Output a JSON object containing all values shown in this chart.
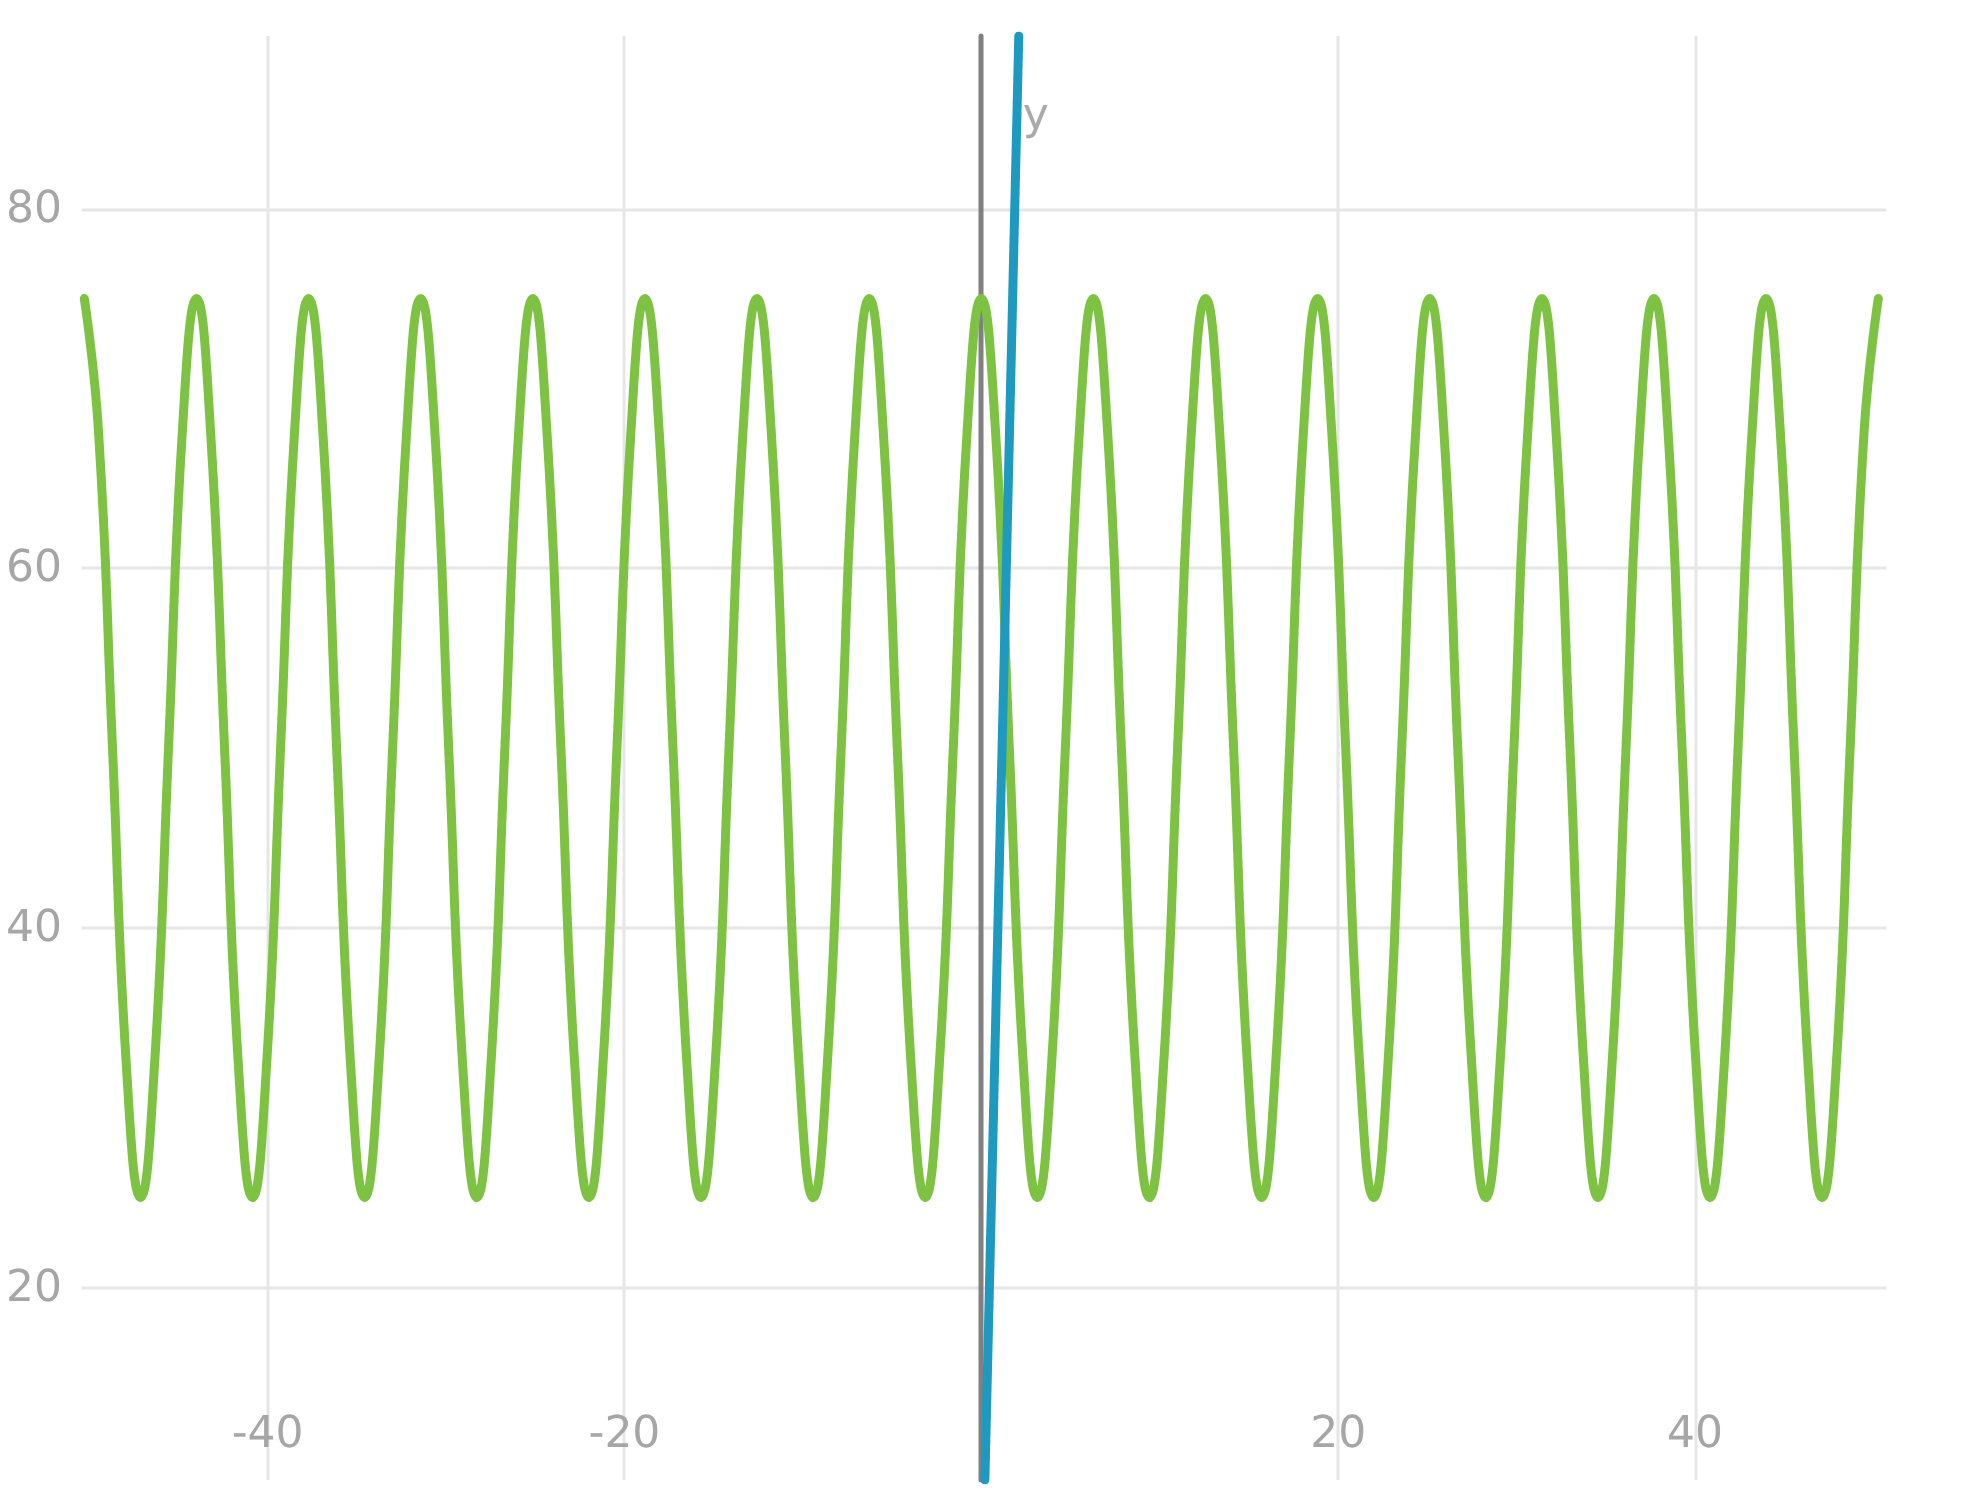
{
  "chart_data": {
    "type": "line",
    "xlim": [
      -50.4,
      50.7
    ],
    "ylim": [
      9.3,
      89.6
    ],
    "xticks": [
      -40,
      -20,
      20,
      40
    ],
    "yticks": [
      20,
      40,
      60,
      80
    ],
    "grid": true,
    "marker": "none",
    "line_style": "solid",
    "series": [
      {
        "color": "#7dc242",
        "x": [
          -50.27,
          -49.48,
          -48.69,
          -47.91,
          -47.12,
          -46.34,
          -45.55,
          -44.77,
          -43.98,
          -43.2,
          -42.41,
          -41.63,
          -40.84,
          -40.06,
          -39.27,
          -38.48,
          -37.7,
          -36.91,
          -36.13,
          -35.34,
          -34.56,
          -33.77,
          -32.99,
          -32.2,
          -31.42,
          -30.63,
          -29.85,
          -29.06,
          -28.27,
          -27.49,
          -26.7,
          -25.92,
          -25.13,
          -24.35,
          -23.56,
          -22.78,
          -21.99,
          -21.21,
          -20.42,
          -19.63,
          -18.85,
          -18.06,
          -17.28,
          -16.49,
          -15.71,
          -14.92,
          -14.14,
          -13.35,
          -12.57,
          -11.78,
          -11,
          -10.21,
          -9.42,
          -8.64,
          -7.85,
          -7.07,
          -6.28,
          -5.5,
          -4.71,
          -3.93,
          -3.14,
          -2.36,
          -1.57,
          -0.79,
          0,
          0.79,
          1.57,
          2.36,
          3.14,
          3.93,
          4.71,
          5.5,
          6.28,
          7.07,
          7.85,
          8.64,
          9.42,
          10.21,
          11,
          11.78,
          12.57,
          13.35,
          14.14,
          14.92,
          15.71,
          16.49,
          17.28,
          18.06,
          18.85,
          19.63,
          20.42,
          21.21,
          21.99,
          22.78,
          23.56,
          24.35,
          25.13,
          25.92,
          26.7,
          27.49,
          28.27,
          29.06,
          29.85,
          30.63,
          31.42,
          32.2,
          32.99,
          33.77,
          34.56,
          35.34,
          36.13,
          36.91,
          37.7,
          38.48,
          39.27,
          40.06,
          40.84,
          41.63,
          42.41,
          43.2,
          43.98,
          44.77,
          45.55,
          46.34,
          47.12,
          47.91,
          48.69,
          49.48,
          50.27
        ],
        "values": [
          75,
          67.7,
          50,
          32.3,
          25,
          32.3,
          50,
          67.7,
          75,
          67.7,
          50,
          32.3,
          25,
          32.3,
          50,
          67.7,
          75,
          67.7,
          50,
          32.3,
          25,
          32.3,
          50,
          67.7,
          75,
          67.7,
          50,
          32.3,
          25,
          32.3,
          50,
          67.7,
          75,
          67.7,
          50,
          32.3,
          25,
          32.3,
          50,
          67.7,
          75,
          67.7,
          50,
          32.3,
          25,
          32.3,
          50,
          67.7,
          75,
          67.7,
          50,
          32.3,
          25,
          32.3,
          50,
          67.7,
          75,
          67.7,
          50,
          32.3,
          25,
          32.3,
          50,
          67.7,
          75,
          67.7,
          50,
          32.3,
          25,
          32.3,
          50,
          67.7,
          75,
          67.7,
          50,
          32.3,
          25,
          32.3,
          50,
          67.7,
          75,
          67.7,
          50,
          32.3,
          25,
          32.3,
          50,
          67.7,
          75,
          67.7,
          50,
          32.3,
          25,
          32.3,
          50,
          67.7,
          75,
          67.7,
          50,
          32.3,
          25,
          32.3,
          50,
          67.7,
          75,
          67.7,
          50,
          32.3,
          25,
          32.3,
          50,
          67.7,
          75,
          67.7,
          50,
          32.3,
          25,
          32.3,
          50,
          67.7,
          75,
          67.7,
          50,
          32.3,
          25,
          32.3,
          50,
          67.7,
          75
        ]
      },
      {
        "name": "y",
        "color": "#1e9ac0",
        "x": [
          0.2,
          2.1
        ],
        "values": [
          9.3,
          89.6
        ]
      }
    ]
  }
}
